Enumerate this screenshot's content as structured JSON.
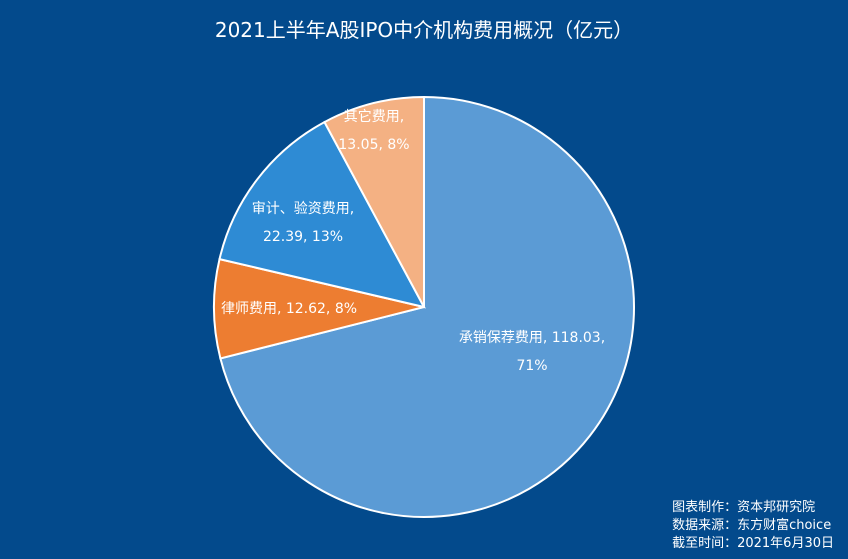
{
  "chart_data": {
    "type": "pie",
    "title": "2021上半年A股IPO中介机构费用概况（亿元）",
    "start_angle_deg": 0,
    "direction": "clockwise",
    "slices": [
      {
        "name": "承销保荐费用",
        "value": 118.03,
        "percent": "71%",
        "color": "#5b9bd5",
        "label_lines": [
          "承销保荐费用, 118.03,",
          "71%"
        ]
      },
      {
        "name": "律师费用",
        "value": 12.62,
        "percent": "8%",
        "color": "#ed7d31",
        "label_lines": [
          "律师费用, 12.62, 8%"
        ]
      },
      {
        "name": "审计、验资费用",
        "value": 22.39,
        "percent": "13%",
        "color": "#2e8bd4",
        "label_lines": [
          "审计、验资费用,",
          "22.39, 13%"
        ]
      },
      {
        "name": "其它费用",
        "value": 13.05,
        "percent": "8%",
        "color": "#f4b183",
        "label_lines": [
          "其它费用,",
          "13.05, 8%"
        ]
      }
    ]
  },
  "credits": [
    "图表制作：资本邦研究院",
    "数据来源：东方财富choice",
    "截至时间：2021年6月30日"
  ]
}
